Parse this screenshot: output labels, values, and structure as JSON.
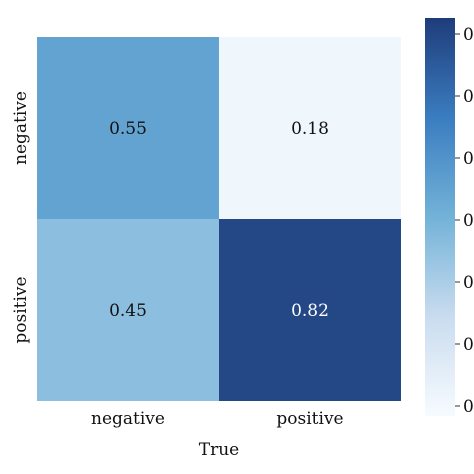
{
  "chart_data": {
    "type": "heatmap",
    "title": "",
    "xlabel": "True",
    "ylabel": "",
    "x_categories": [
      "negative",
      "positive"
    ],
    "y_categories": [
      "negative",
      "positive"
    ],
    "values": [
      [
        0.55,
        0.18
      ],
      [
        0.45,
        0.82
      ]
    ],
    "cell_labels": [
      [
        "0.55",
        "0.18"
      ],
      [
        "0.45",
        "0.82"
      ]
    ],
    "value_range": [
      0.15,
      0.85
    ],
    "colormap": "Blues",
    "colorbar": {
      "placement": "right",
      "tick_labels": [
        "0",
        "0",
        "0",
        "0",
        "0",
        "0",
        "0"
      ]
    },
    "colors": {
      "low": "#f7fbff",
      "high": "#1f3c7a",
      "text_dark": "#111111",
      "text_light": "#ffffff"
    }
  }
}
